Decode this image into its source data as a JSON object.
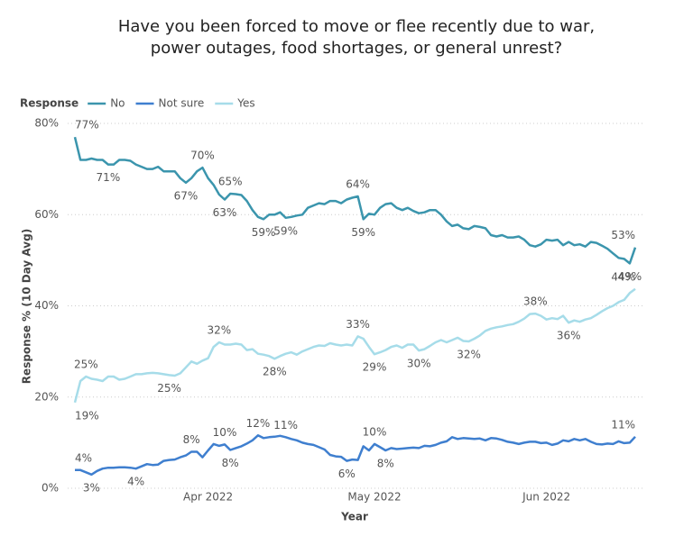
{
  "chart_data": {
    "type": "line",
    "title": "Have you been forced to move or flee recently due to war, power outages, food shortages, or general unrest?",
    "legend_title": "Response",
    "x_label": "Year",
    "y_label": "Response % (10 Day Avg)",
    "ylim": [
      0,
      80
    ],
    "yticks": [
      {
        "value": 0,
        "label": "0%"
      },
      {
        "value": 20,
        "label": "20%"
      },
      {
        "value": 40,
        "label": "40%"
      },
      {
        "value": 60,
        "label": "60%"
      },
      {
        "value": 80,
        "label": "80%"
      }
    ],
    "grid": true,
    "categories": [
      null,
      null,
      null,
      null,
      null,
      null,
      null,
      null,
      null,
      null,
      null,
      null,
      null,
      null,
      null,
      null,
      null,
      null,
      null,
      null,
      null,
      null,
      null,
      null,
      "Apr 2022",
      null,
      null,
      null,
      null,
      null,
      null,
      null,
      null,
      null,
      null,
      null,
      null,
      null,
      null,
      null,
      null,
      null,
      null,
      null,
      null,
      null,
      null,
      null,
      null,
      null,
      null,
      null,
      null,
      null,
      "May 2022",
      null,
      null,
      null,
      null,
      null,
      null,
      null,
      null,
      null,
      null,
      null,
      null,
      null,
      null,
      null,
      null,
      null,
      null,
      null,
      null,
      null,
      null,
      null,
      null,
      null,
      null,
      null,
      null,
      null,
      null,
      "Jun 2022",
      null,
      null,
      null,
      null,
      null,
      null,
      null,
      null,
      null,
      null,
      null,
      null,
      null,
      null,
      null,
      null
    ],
    "series": [
      {
        "name": "No",
        "color": "#3b95ad",
        "values": [
          77,
          72,
          72,
          72.3,
          72,
          72,
          71,
          71,
          72,
          72,
          71.8,
          71,
          70.5,
          70,
          70,
          70.5,
          69.5,
          69.5,
          69.5,
          68,
          67,
          68,
          69.5,
          70.3,
          68,
          66.5,
          64.4,
          63.3,
          64.6,
          64.5,
          64.3,
          63,
          61,
          59.5,
          59,
          60,
          60,
          60.5,
          59.3,
          59.5,
          59.8,
          60,
          61.5,
          62,
          62.5,
          62.3,
          63,
          63,
          62.5,
          63.3,
          63.7,
          64,
          59,
          60.2,
          60,
          61.5,
          62.3,
          62.5,
          61.5,
          61,
          61.5,
          60.8,
          60.3,
          60.5,
          61,
          61,
          60,
          58.5,
          57.5,
          57.8,
          57,
          56.8,
          57.5,
          57.3,
          57,
          55.5,
          55.2,
          55.5,
          55,
          55,
          55.2,
          54.5,
          53.3,
          53,
          53.5,
          54.5,
          54.3,
          54.5,
          53.3,
          54,
          53.3,
          53.5,
          53,
          54,
          53.8,
          53.2,
          52.5,
          51.5,
          50.5,
          50.3,
          49.3,
          52.8
        ],
        "value_labels": [
          "77%",
          null,
          null,
          null,
          null,
          null,
          "71%",
          null,
          null,
          null,
          null,
          null,
          null,
          null,
          null,
          null,
          null,
          null,
          null,
          null,
          "67%",
          null,
          null,
          "70%",
          null,
          null,
          null,
          "63%",
          "65%",
          null,
          null,
          null,
          null,
          null,
          "59%",
          null,
          null,
          null,
          "59%",
          null,
          null,
          null,
          null,
          null,
          null,
          null,
          null,
          null,
          null,
          null,
          null,
          "64%",
          "59%",
          null,
          null,
          null,
          null,
          null,
          null,
          null,
          null,
          null,
          null,
          null,
          null,
          null,
          null,
          null,
          null,
          null,
          null,
          null,
          null,
          null,
          null,
          null,
          null,
          null,
          null,
          null,
          null,
          null,
          null,
          null,
          null,
          null,
          null,
          null,
          null,
          null,
          null,
          null,
          null,
          null,
          null,
          null,
          null,
          null,
          null,
          null,
          "49%",
          "53%"
        ]
      },
      {
        "name": "Not sure",
        "color": "#3f7fcf",
        "values": [
          4,
          4,
          3.5,
          3,
          3.8,
          4.3,
          4.5,
          4.5,
          4.6,
          4.6,
          4.5,
          4.3,
          4.8,
          5.3,
          5.1,
          5.2,
          6,
          6.2,
          6.3,
          6.8,
          7.2,
          8,
          8,
          6.8,
          8.3,
          9.7,
          9.3,
          9.6,
          8.4,
          8.8,
          9.2,
          9.8,
          10.5,
          11.6,
          11,
          11.2,
          11.3,
          11.5,
          11.2,
          10.8,
          10.5,
          10,
          9.7,
          9.5,
          9,
          8.5,
          7.3,
          7,
          6.9,
          6,
          6.3,
          6.2,
          9.2,
          8.3,
          9.7,
          9,
          8.3,
          8.8,
          8.6,
          8.7,
          8.8,
          8.9,
          8.8,
          9.3,
          9.2,
          9.5,
          10,
          10.3,
          11.2,
          10.8,
          11,
          10.9,
          10.8,
          10.9,
          10.5,
          11,
          10.9,
          10.6,
          10.2,
          10,
          9.7,
          10,
          10.2,
          10.2,
          9.9,
          10,
          9.5,
          9.8,
          10.5,
          10.3,
          10.8,
          10.5,
          10.8,
          10.2,
          9.7,
          9.6,
          9.8,
          9.7,
          10.3,
          9.9,
          10,
          11.3
        ],
        "value_labels": [
          "4%",
          null,
          null,
          "3%",
          null,
          null,
          null,
          null,
          null,
          null,
          null,
          "4%",
          null,
          null,
          null,
          null,
          null,
          null,
          null,
          null,
          null,
          "8%",
          null,
          null,
          null,
          null,
          null,
          "10%",
          "8%",
          null,
          null,
          null,
          null,
          "12%",
          null,
          null,
          null,
          null,
          "11%",
          null,
          null,
          null,
          null,
          null,
          null,
          null,
          null,
          null,
          null,
          "6%",
          null,
          null,
          null,
          null,
          "10%",
          null,
          "8%",
          null,
          null,
          null,
          null,
          null,
          null,
          null,
          null,
          null,
          null,
          null,
          null,
          null,
          null,
          null,
          null,
          null,
          null,
          null,
          null,
          null,
          null,
          null,
          null,
          null,
          null,
          null,
          null,
          null,
          null,
          null,
          null,
          null,
          null,
          null,
          null,
          null,
          null,
          null,
          null,
          null,
          null,
          null,
          null,
          "11%"
        ]
      },
      {
        "name": "Yes",
        "color": "#a6dce9",
        "values": [
          18.8,
          23.5,
          24.5,
          24,
          23.8,
          23.5,
          24.5,
          24.5,
          23.8,
          24,
          24.5,
          25,
          25,
          25.2,
          25.3,
          25.2,
          25,
          24.8,
          24.7,
          25.2,
          26.5,
          27.8,
          27.3,
          28,
          28.5,
          31,
          32,
          31.5,
          31.5,
          31.7,
          31.5,
          30.3,
          30.5,
          29.5,
          29.3,
          29,
          28.4,
          29,
          29.5,
          29.8,
          29.3,
          30,
          30.5,
          31,
          31.3,
          31.2,
          31.8,
          31.5,
          31.3,
          31.5,
          31.3,
          33.3,
          32.8,
          31,
          29.4,
          29.8,
          30.3,
          31,
          31.3,
          30.8,
          31.5,
          31.5,
          30.2,
          30.5,
          31.2,
          32,
          32.5,
          32,
          32.5,
          33,
          32.3,
          32.2,
          32.8,
          33.5,
          34.5,
          35,
          35.3,
          35.5,
          35.8,
          36,
          36.5,
          37.2,
          38.2,
          38.3,
          37.8,
          37,
          37.3,
          37.1,
          37.8,
          36.3,
          36.8,
          36.5,
          37,
          37.3,
          38,
          38.8,
          39.5,
          40,
          40.8,
          41.3,
          42.8,
          43.7
        ],
        "value_labels": [
          "19%",
          null,
          "25%",
          null,
          null,
          null,
          null,
          null,
          null,
          null,
          null,
          null,
          null,
          null,
          null,
          null,
          null,
          "25%",
          null,
          null,
          null,
          null,
          null,
          null,
          null,
          null,
          "32%",
          null,
          null,
          null,
          null,
          null,
          null,
          null,
          null,
          null,
          "28%",
          null,
          null,
          null,
          null,
          null,
          null,
          null,
          null,
          null,
          null,
          null,
          null,
          null,
          null,
          "33%",
          null,
          null,
          "29%",
          null,
          null,
          null,
          null,
          null,
          null,
          null,
          "30%",
          null,
          null,
          null,
          null,
          null,
          null,
          null,
          null,
          "32%",
          null,
          null,
          null,
          null,
          null,
          null,
          null,
          null,
          null,
          null,
          null,
          "38%",
          null,
          null,
          null,
          null,
          null,
          "36%",
          null,
          null,
          null,
          null,
          null,
          null,
          null,
          null,
          null,
          null,
          null,
          "44%"
        ]
      }
    ]
  }
}
